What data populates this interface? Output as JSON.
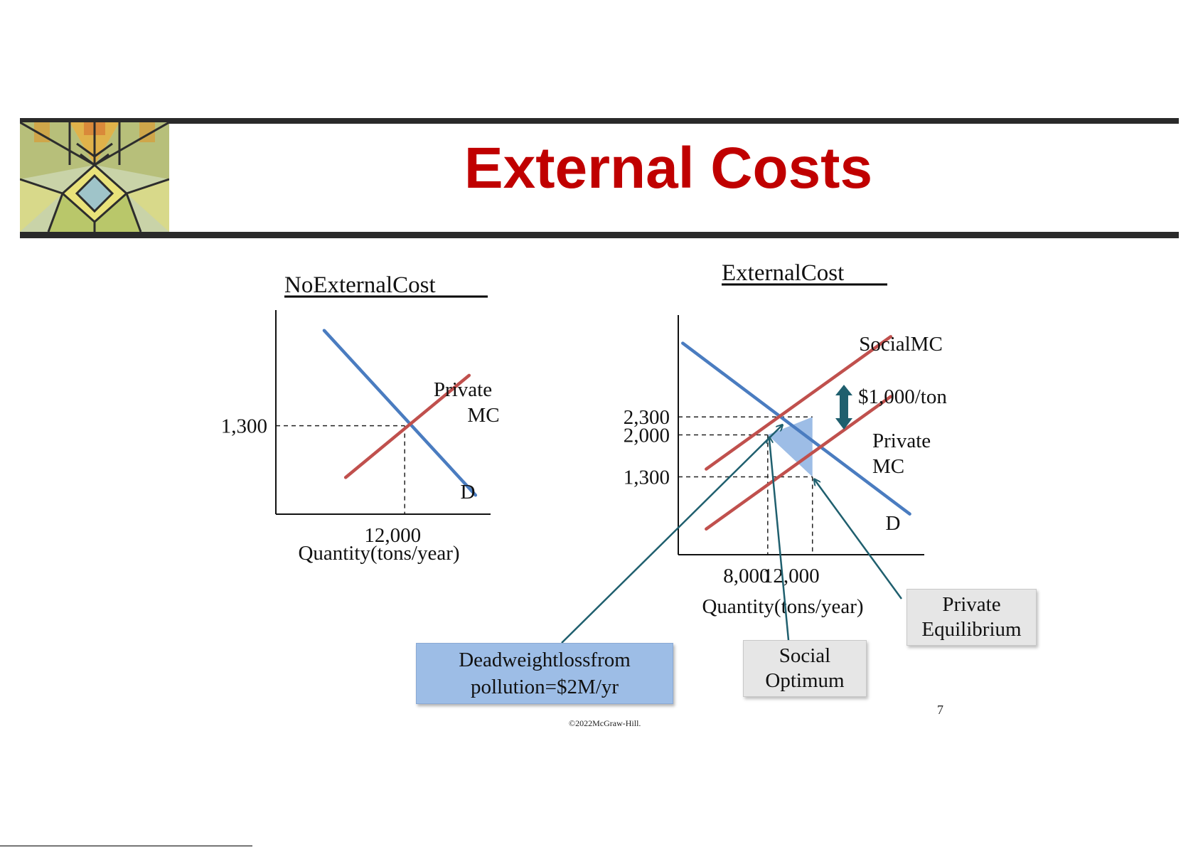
{
  "slide": {
    "title": "External Costs",
    "page_number": "7",
    "copyright": "©2022McGraw-Hill."
  },
  "colors": {
    "demand": "#4a7cc0",
    "supply": "#c0504d",
    "deadweight_fill": "#9dbde6",
    "arrow": "#1f5f6e",
    "title": "#c00000"
  },
  "callouts": {
    "deadweight": [
      "Deadweightlossfrom",
      "pollution=$2M/yr"
    ],
    "social_optimum": [
      "Social",
      "Optimum"
    ],
    "private_equilibrium": [
      "Private",
      "Equilibrium"
    ]
  },
  "chart_data": [
    {
      "type": "line",
      "title": "NoExternalCost",
      "xlabel": "Quantity(tons/year)",
      "ylabel": "",
      "x_ticks": [
        {
          "value": 12000,
          "label": "12,000"
        }
      ],
      "y_ticks": [
        {
          "value": 1300,
          "label": "1,300"
        }
      ],
      "series": [
        {
          "name": "D",
          "kind": "demand",
          "points": [
            [
              4500,
              2700
            ],
            [
              18600,
              280
            ]
          ]
        },
        {
          "name": "Private MC",
          "kind": "supply",
          "label_lines": [
            "Private",
            "MC"
          ],
          "points": [
            [
              6500,
              540
            ],
            [
              18000,
              2040
            ]
          ]
        }
      ],
      "equilibrium": {
        "x": 12000,
        "y": 1300
      }
    },
    {
      "type": "line",
      "title": "ExternalCost",
      "xlabel": "Quantity(tons/year)",
      "ylabel": "",
      "x_ticks": [
        {
          "value": 8000,
          "label": "8,000"
        },
        {
          "value": 12000,
          "label": "12,000"
        }
      ],
      "y_ticks": [
        {
          "value": 2300,
          "label": "2,300"
        },
        {
          "value": 2000,
          "label": "2,000"
        },
        {
          "value": 1300,
          "label": "1,300"
        }
      ],
      "series": [
        {
          "name": "D",
          "kind": "demand",
          "points": [
            [
              400,
              3530
            ],
            [
              20700,
              680
            ]
          ]
        },
        {
          "name": "SocialMC",
          "kind": "supply",
          "label_lines": [
            "SocialMC"
          ],
          "points": [
            [
              2500,
              1430
            ],
            [
              19000,
              3640
            ]
          ]
        },
        {
          "name": "Private MC",
          "kind": "supply",
          "label_lines": [
            "Private",
            "MC"
          ],
          "points": [
            [
              2500,
              430
            ],
            [
              19000,
              2640
            ]
          ]
        }
      ],
      "wedge_label": "$1,000/ton",
      "social_optimum": {
        "x": 8000,
        "y": 2000
      },
      "private_equilibrium": {
        "x": 12000,
        "y": 1300
      },
      "deadweight_polygon": [
        [
          8000,
          2000
        ],
        [
          12000,
          2300
        ],
        [
          12000,
          1300
        ]
      ]
    }
  ]
}
